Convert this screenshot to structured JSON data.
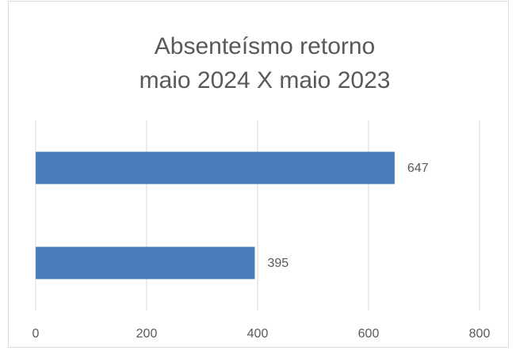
{
  "chart_data": {
    "type": "barh",
    "title": [
      "Absenteísmo retorno",
      "maio 2024 X maio 2023"
    ],
    "categories": [
      null,
      null
    ],
    "values": [
      647,
      395
    ],
    "color": "#4a7ebb",
    "xlim": [
      0,
      800
    ],
    "xticks": [
      0,
      200,
      400,
      600,
      800
    ],
    "grid": true
  }
}
